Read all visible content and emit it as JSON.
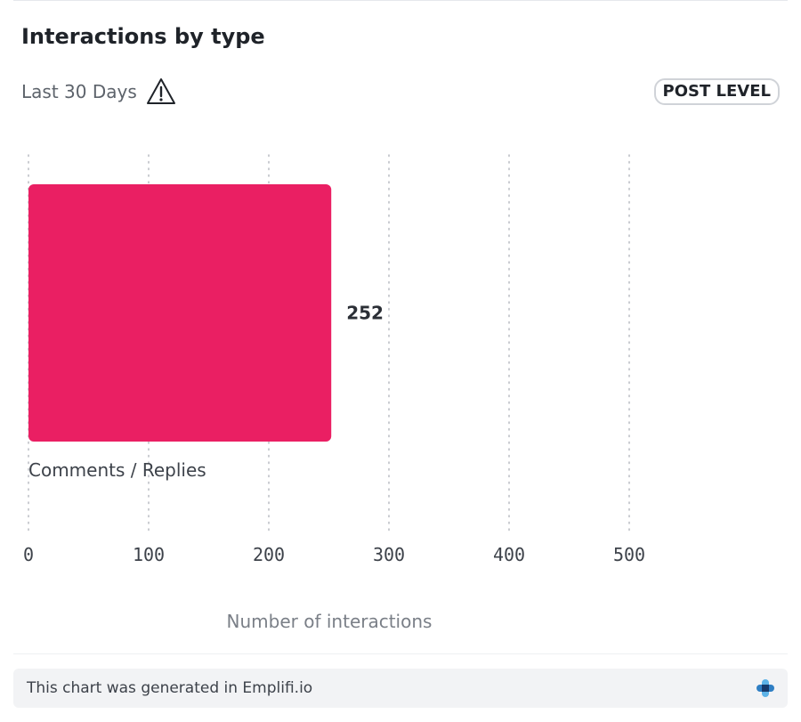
{
  "widget": {
    "title": "Interactions by type",
    "range_label": "Last 30 Days",
    "warning_icon": "warning-triangle-icon",
    "level_badge": "POST LEVEL"
  },
  "chart_data": {
    "type": "bar",
    "orientation": "horizontal",
    "categories": [
      "Comments / Replies"
    ],
    "values": [
      252
    ],
    "data_labels": [
      "252"
    ],
    "x_ticks": [
      "0",
      "100",
      "200",
      "300",
      "400",
      "500"
    ],
    "xlim": [
      0,
      500
    ],
    "xlabel": "Number of interactions",
    "grid": "vertical dotted",
    "bar_color": "#ea1f63"
  },
  "footer": {
    "text": "This chart was generated in Emplifi.io",
    "logo_icon": "emplifi-logo-icon"
  },
  "colors": {
    "bar": "#ea1f63",
    "grid": "#b9bcc2",
    "text": "#2b2f36",
    "footer_bg": "#f2f3f5"
  }
}
